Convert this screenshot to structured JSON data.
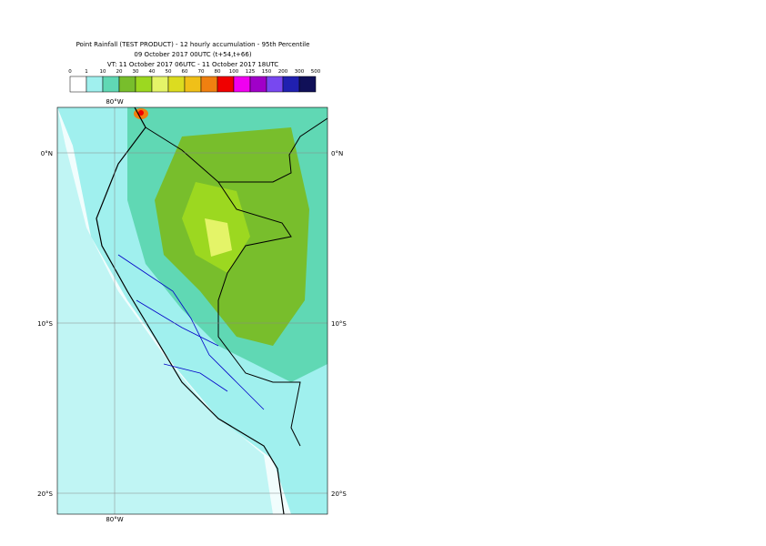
{
  "header": {
    "title_lines": [
      "Point Rainfall (TEST PRODUCT) - 12 hourly accumulation - 95th Percentile",
      "09 October 2017 00UTC (t+54,t+66)",
      "VT: 11 October 2017 06UTC - 11 October 2017 18UTC"
    ]
  },
  "legend": {
    "thresholds": [
      0,
      1,
      10,
      20,
      30,
      40,
      50,
      60,
      70,
      80,
      100,
      125,
      150,
      200,
      300,
      500
    ],
    "colors": [
      "#ffffff",
      "#a0f0ee",
      "#60d8b4",
      "#78be2c",
      "#9cd820",
      "#e4f468",
      "#dcdc20",
      "#f0c018",
      "#f08010",
      "#f00000",
      "#f000f0",
      "#a000c8",
      "#7848f0",
      "#2020b0",
      "#101058"
    ]
  },
  "map": {
    "lon_labels": [
      "80°W",
      "80°W"
    ],
    "lat_labels": [
      "0°N",
      "0°N",
      "10°S",
      "10°S",
      "20°S",
      "20°S"
    ]
  }
}
